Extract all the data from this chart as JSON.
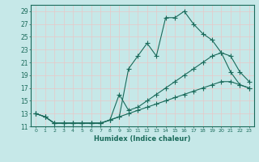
{
  "xlabel": "Humidex (Indice chaleur)",
  "bg_color": "#c6e8e8",
  "grid_color": "#e8c8c8",
  "line_color": "#1a6a5a",
  "xlim": [
    -0.5,
    23.5
  ],
  "ylim": [
    11,
    30
  ],
  "xticks": [
    0,
    1,
    2,
    3,
    4,
    5,
    6,
    7,
    8,
    9,
    10,
    11,
    12,
    13,
    14,
    15,
    16,
    17,
    18,
    19,
    20,
    21,
    22,
    23
  ],
  "yticks": [
    11,
    13,
    15,
    17,
    19,
    21,
    23,
    25,
    27,
    29
  ],
  "line1_x": [
    0,
    1,
    2,
    3,
    4,
    5,
    6,
    7,
    8,
    9,
    10,
    11,
    12,
    13,
    14,
    15,
    16,
    17,
    18,
    19,
    20,
    21,
    22,
    23
  ],
  "line1_y": [
    13,
    12.5,
    11.5,
    11.5,
    11.5,
    11.5,
    11.5,
    11.5,
    12,
    12.5,
    20,
    22,
    24,
    22,
    28,
    28,
    29,
    27,
    25.5,
    24.5,
    22.5,
    19.5,
    17.5,
    17
  ],
  "line2_x": [
    0,
    1,
    2,
    3,
    4,
    5,
    6,
    7,
    8,
    9,
    10,
    11,
    12,
    13,
    14,
    15,
    16,
    17,
    18,
    19,
    20,
    21,
    22,
    23
  ],
  "line2_y": [
    13,
    12.5,
    11.5,
    11.5,
    11.5,
    11.5,
    11.5,
    11.5,
    12,
    16,
    13.5,
    14,
    15,
    16,
    17,
    18,
    19,
    20,
    21,
    22,
    22.5,
    22,
    19.5,
    18
  ],
  "line3_x": [
    0,
    1,
    2,
    3,
    4,
    5,
    6,
    7,
    8,
    9,
    10,
    11,
    12,
    13,
    14,
    15,
    16,
    17,
    18,
    19,
    20,
    21,
    22,
    23
  ],
  "line3_y": [
    13,
    12.5,
    11.5,
    11.5,
    11.5,
    11.5,
    11.5,
    11.5,
    12,
    12.5,
    13,
    13.5,
    14,
    14.5,
    15,
    15.5,
    16,
    16.5,
    17,
    17.5,
    18,
    18,
    17.5,
    17
  ]
}
